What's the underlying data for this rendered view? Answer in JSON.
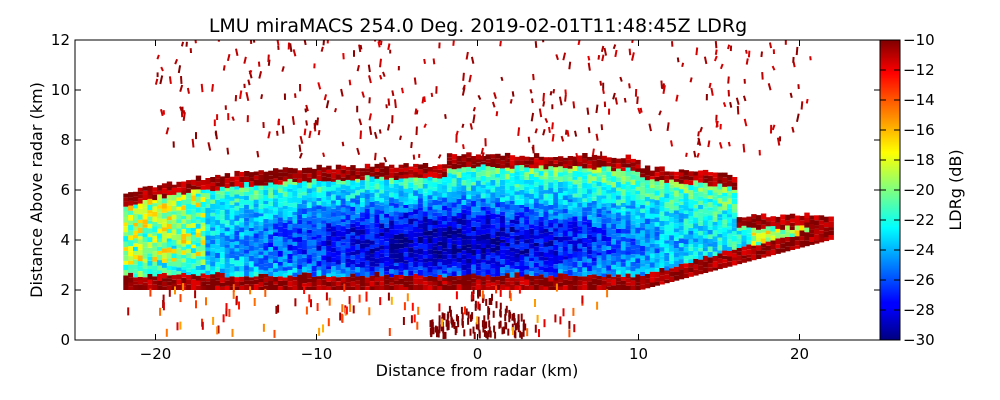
{
  "chart_data": {
    "type": "heatmap",
    "title": "LMU miraMACS 254.0 Deg. 2019-02-01T11:48:45Z  LDRg",
    "xlabel": "Distance from radar (km)",
    "ylabel": "Distance Above radar  (km)",
    "xlim": [
      -25,
      25
    ],
    "ylim": [
      0,
      12
    ],
    "x_ticks": [
      -20,
      -10,
      0,
      10,
      20
    ],
    "x_tick_labels": [
      "−20",
      "−10",
      "0",
      "10",
      "20"
    ],
    "y_ticks": [
      0,
      2,
      4,
      6,
      8,
      10,
      12
    ],
    "y_tick_labels": [
      "0",
      "2",
      "4",
      "6",
      "8",
      "10",
      "12"
    ],
    "colorbar": {
      "label": "LDRg (dB)",
      "range": [
        -30,
        -10
      ],
      "ticks": [
        -10,
        -12,
        -14,
        -16,
        -18,
        -20,
        -22,
        -24,
        -26,
        -28,
        -30
      ],
      "tick_labels": [
        "−10",
        "−12",
        "−14",
        "−16",
        "−18",
        "−20",
        "−22",
        "−24",
        "−26",
        "−28",
        "−30"
      ],
      "colormap": "jet"
    },
    "features": [
      {
        "name": "main cloud layer",
        "x_range": [
          -22,
          22
        ],
        "y_range": [
          2.0,
          7.5
        ],
        "core_center": [
          -2,
          3.8
        ],
        "ldr_core": -29,
        "ldr_edge": -12
      },
      {
        "name": "low-level echoes near radar",
        "x_range": [
          -3,
          3
        ],
        "y_range": [
          0,
          2
        ],
        "ldr": -10
      },
      {
        "name": "sparse upper-level echoes",
        "x_range": [
          -20,
          21
        ],
        "y_range": [
          7.5,
          12
        ],
        "ldr": -10
      }
    ]
  }
}
